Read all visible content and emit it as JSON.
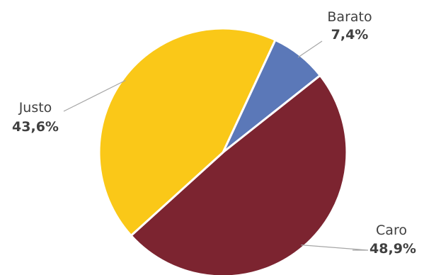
{
  "chart_data": {
    "type": "pie",
    "title": "",
    "slices": [
      {
        "label": "Barato",
        "value": 7.4,
        "display": "7,4%",
        "color": "#5b78b8"
      },
      {
        "label": "Caro",
        "value": 48.9,
        "display": "48,9%",
        "color": "#7c2430"
      },
      {
        "label": "Justo",
        "value": 43.6,
        "display": "43,6%",
        "color": "#fac818"
      }
    ],
    "start_angle_deg": 25,
    "direction": "clockwise",
    "slice_border_color": "#ffffff",
    "leader_line_color": "#a6a6a6",
    "label_color": "#404040"
  }
}
